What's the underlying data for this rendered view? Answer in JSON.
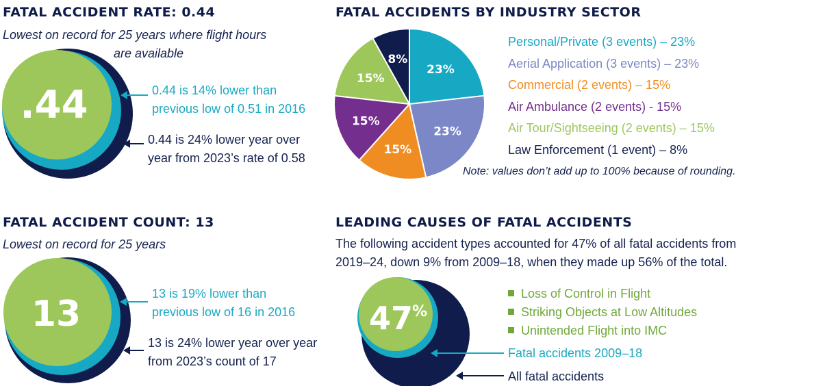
{
  "rate": {
    "heading": "FATAL ACCIDENT RATE: 0.44",
    "subtitle_line1": "Lowest on record for 25 years where flight hours",
    "subtitle_line2": "are available",
    "big_value": ".44",
    "teal_line1": "0.44 is 14% lower than",
    "teal_line2": "previous low of 0.51 in 2016",
    "navy_line1": "0.44 is 24% lower year over",
    "navy_line2": "year from 2023’s rate of 0.58"
  },
  "count": {
    "heading": "FATAL ACCIDENT COUNT: 13",
    "subtitle": "Lowest on record for 25 years",
    "big_value": "13",
    "teal_line1": "13 is 19% lower than",
    "teal_line2": "previous low of 16 in 2016",
    "navy_line1": "13 is 24% lower year over year",
    "navy_line2": "from 2023’s count of 17"
  },
  "sector": {
    "heading": "FATAL ACCIDENTS BY INDUSTRY SECTOR",
    "note": "Note: values don’t add up to 100% because of rounding.",
    "legend": [
      "Personal/Private (3 events) – 23%",
      "Aerial Application (3 events) – 23%",
      "Commercial (2 events) – 15%",
      "Air Ambulance (2 events) - 15%",
      "Air Tour/Sightseeing (2 events) – 15%",
      "Law Enforcement (1 event) – 8%"
    ]
  },
  "causes": {
    "heading": "LEADING CAUSES OF FATAL ACCIDENTS",
    "desc_line1": "The following accident types accounted for 47% of all fatal accidents from",
    "desc_line2": "2019–24, down 9% from 2009–18, when they made up 56% of the total.",
    "big_value": "47",
    "big_pct": "%",
    "bullets": [
      "Loss of Control in Flight",
      "Striking Objects at Low Altitudes",
      "Unintended Flight into IMC"
    ],
    "teal_label": "Fatal accidents 2009–18",
    "navy_label": "All fatal accidents"
  },
  "colors": {
    "green": "#9dc75a",
    "teal": "#17a9c4",
    "navy": "#101c4b",
    "periwinkle": "#7b87c6",
    "orange": "#f08d22",
    "purple": "#742e8e"
  },
  "chart_data": [
    {
      "type": "pie",
      "title": "FATAL ACCIDENTS BY INDUSTRY SECTOR",
      "categories": [
        "Personal/Private",
        "Aerial Application",
        "Commercial",
        "Air Ambulance",
        "Air Tour/Sightseeing",
        "Law Enforcement"
      ],
      "values": [
        23,
        23,
        15,
        15,
        15,
        8
      ],
      "events": [
        3,
        3,
        2,
        2,
        2,
        1
      ],
      "labels": [
        "23%",
        "23%",
        "15%",
        "15%",
        "15%",
        "8%"
      ],
      "colors": [
        "#17a9c4",
        "#7b87c6",
        "#f08d22",
        "#742e8e",
        "#9dc75a",
        "#101c4b"
      ],
      "label_colors": [
        "#ffffff",
        "#ffffff",
        "#ffffff",
        "#ffffff",
        "#ffffff",
        "#ffffff"
      ],
      "legend_position": "right"
    }
  ]
}
